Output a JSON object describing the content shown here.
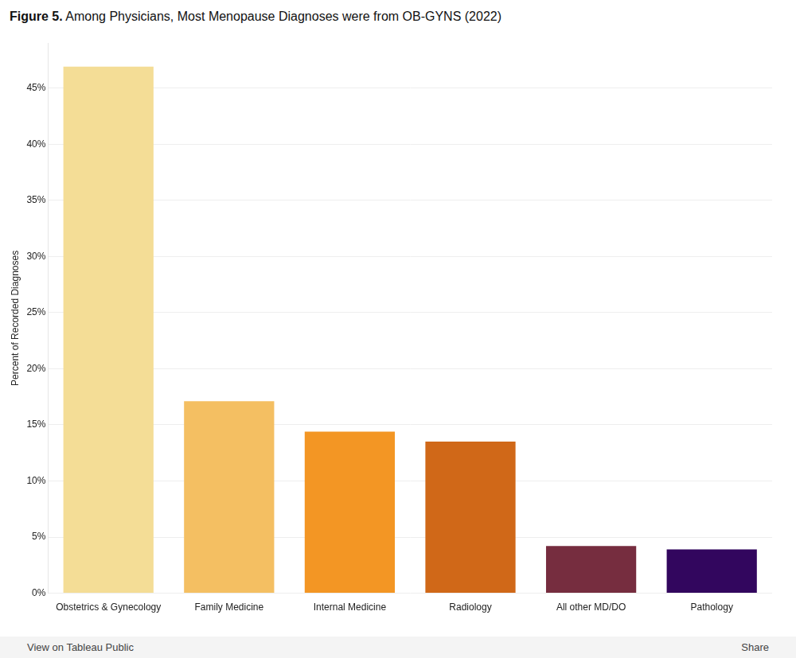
{
  "chart_data": {
    "type": "bar",
    "title": "Figure 5. Among Physicians, Most Menopause Diagnoses were from OB-GYNS (2022)",
    "y_label": "Percent of Recorded Diagnoses",
    "categories": [
      "Obstetrics & Gynecology",
      "Family Medicine",
      "Internal Medicine",
      "Radiology",
      "All other MD/DO",
      "Pathology"
    ],
    "values": [
      46.9,
      17.1,
      14.4,
      13.5,
      4.2,
      3.9
    ],
    "colors": [
      "#f4dd96",
      "#f4bf62",
      "#f39624",
      "#d06818",
      "#762d3f",
      "#32065e"
    ],
    "ylim": [
      0,
      49
    ],
    "yticks": [
      {
        "value": 0,
        "label": "0%"
      },
      {
        "value": 5,
        "label": "5%"
      },
      {
        "value": 10,
        "label": "10%"
      },
      {
        "value": 15,
        "label": "15%"
      },
      {
        "value": 20,
        "label": "20%"
      },
      {
        "value": 25,
        "label": "25%"
      },
      {
        "value": 30,
        "label": "30%"
      },
      {
        "value": 35,
        "label": "35%"
      },
      {
        "value": 40,
        "label": "40%"
      },
      {
        "value": 45,
        "label": "45%"
      }
    ],
    "grid": true
  },
  "toolbar": {
    "left": "View on Tableau Public",
    "right": "Share"
  }
}
